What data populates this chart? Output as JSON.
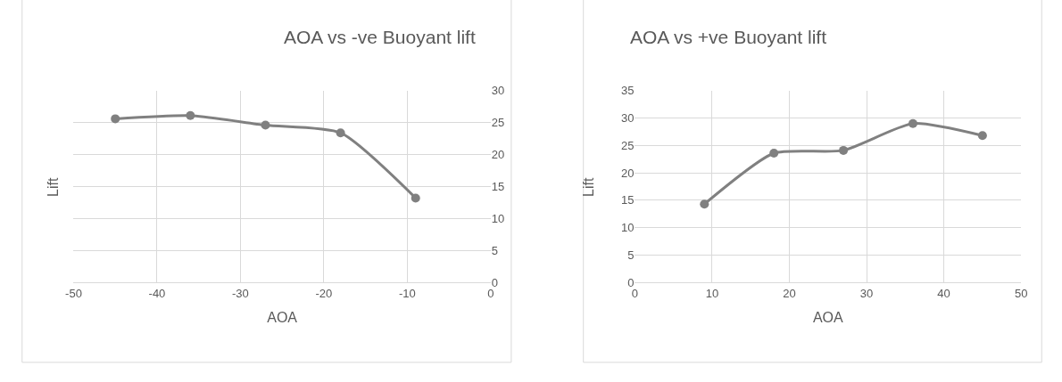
{
  "chart_data": [
    {
      "type": "line",
      "title": "AOA vs -ve Buoyant lift",
      "xlabel": "AOA",
      "ylabel": "Lift",
      "x": [
        -45,
        -36,
        -27,
        -18,
        -9
      ],
      "series": [
        {
          "color": "#808080",
          "values": [
            25.6,
            26.1,
            24.6,
            23.4,
            13.2
          ]
        }
      ],
      "xlim": [
        -50,
        0
      ],
      "xticks": [
        -50,
        -40,
        -30,
        -20,
        -10,
        0
      ],
      "ylim": [
        0,
        30
      ],
      "yticks": [
        0,
        5,
        10,
        15,
        20,
        25,
        30
      ],
      "grid": true,
      "marker": "circle",
      "line_style": "solid"
    },
    {
      "type": "line",
      "title": "AOA vs +ve Buoyant lift",
      "xlabel": "AOA",
      "ylabel": "Lift",
      "x": [
        9,
        18,
        27,
        36,
        45
      ],
      "series": [
        {
          "color": "#808080",
          "values": [
            14.3,
            23.6,
            24.1,
            29,
            26.8
          ]
        }
      ],
      "xlim": [
        0,
        50
      ],
      "xticks": [
        0,
        10,
        20,
        30,
        40,
        50
      ],
      "ylim": [
        0,
        35
      ],
      "yticks": [
        0,
        5,
        10,
        15,
        20,
        25,
        30,
        35
      ],
      "grid": true,
      "marker": "circle",
      "line_style": "solid"
    }
  ]
}
